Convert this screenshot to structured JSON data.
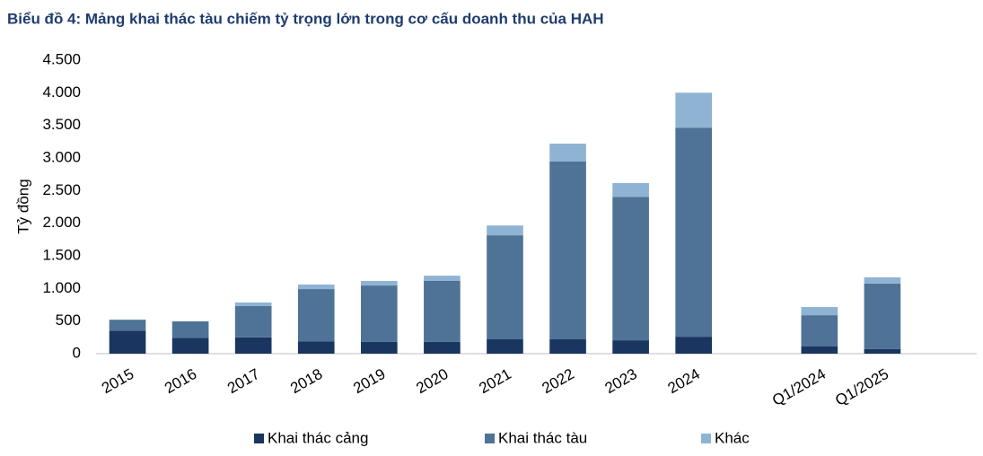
{
  "chart_data": {
    "type": "stacked_bar",
    "title": "Biểu đồ 4: Mảng khai thác tàu chiếm tỷ trọng lớn trong cơ cấu doanh thu của HAH",
    "y_label": "Tỷ đồng",
    "categories": [
      "2015",
      "2016",
      "2017",
      "2018",
      "2019",
      "2020",
      "2021",
      "2022",
      "2023",
      "2024",
      null,
      "Q1/2024",
      "Q1/2025",
      null
    ],
    "series": [
      {
        "name": "Khai thác cảng",
        "color": "#1a3560",
        "values": [
          350,
          240,
          250,
          190,
          180,
          180,
          220,
          220,
          205,
          260,
          null,
          110,
          70,
          null
        ]
      },
      {
        "name": "Khai thác tàu",
        "color": "#4f7396",
        "values": [
          170,
          255,
          480,
          800,
          865,
          935,
          1595,
          2725,
          2200,
          3205,
          null,
          480,
          1005,
          null
        ]
      },
      {
        "name": "Khác",
        "color": "#8fb3d3",
        "values": [
          0,
          0,
          55,
          70,
          70,
          80,
          150,
          275,
          210,
          535,
          null,
          125,
          95,
          null
        ]
      }
    ],
    "ylim": [
      0,
      4500
    ],
    "yticks": [
      0,
      500,
      {
        "value": 1000,
        "label": "1.000"
      },
      {
        "value": 1500,
        "label": "1.500"
      },
      {
        "value": 2000,
        "label": "2.000"
      },
      {
        "value": 2500,
        "label": "2.500"
      },
      {
        "value": 3000,
        "label": "3.000"
      },
      {
        "value": 3500,
        "label": "3.500"
      },
      {
        "value": 4000,
        "label": "4.000"
      },
      {
        "value": 4500,
        "label": "4.500"
      }
    ],
    "grid": false,
    "legend": "bottom"
  }
}
